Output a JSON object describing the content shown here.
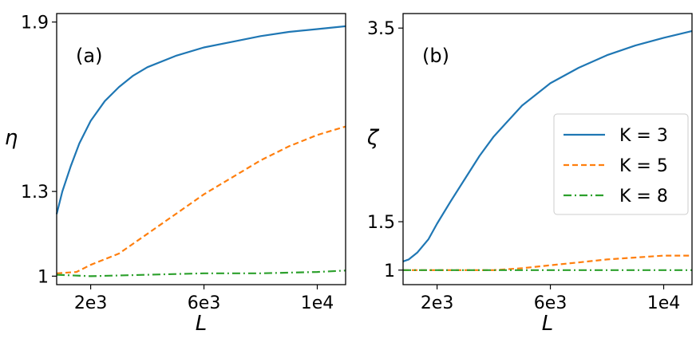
{
  "chart_data": [
    {
      "type": "line",
      "panel_label": "(a)",
      "xlabel": "L",
      "ylabel": "η",
      "xlim": [
        800,
        11000
      ],
      "ylim": [
        0.97,
        1.93
      ],
      "xticks": [
        2000,
        6000,
        10000
      ],
      "xtick_labels": [
        "2e3",
        "6e3",
        "1e4"
      ],
      "yticks": [
        1.0,
        1.3,
        1.9
      ],
      "ytick_labels": [
        "1",
        "1.3",
        "1.9"
      ],
      "series": [
        {
          "name": "K = 3",
          "color": "#1f77b4",
          "style": "solid",
          "x": [
            800,
            1000,
            1300,
            1600,
            2000,
            2500,
            3000,
            3500,
            4000,
            5000,
            6000,
            7000,
            8000,
            9000,
            10000,
            11000
          ],
          "y": [
            1.22,
            1.3,
            1.39,
            1.47,
            1.55,
            1.62,
            1.67,
            1.71,
            1.74,
            1.78,
            1.81,
            1.83,
            1.85,
            1.865,
            1.875,
            1.885
          ]
        },
        {
          "name": "K = 5",
          "color": "#ff7f0e",
          "style": "dashed",
          "x": [
            800,
            1500,
            2000,
            3000,
            4000,
            5000,
            6000,
            7000,
            8000,
            9000,
            10000,
            11000
          ],
          "y": [
            1.01,
            1.015,
            1.04,
            1.08,
            1.15,
            1.22,
            1.29,
            1.35,
            1.41,
            1.46,
            1.5,
            1.53
          ]
        },
        {
          "name": "K = 8",
          "color": "#2ca02c",
          "style": "dashdot",
          "x": [
            800,
            2000,
            4000,
            6000,
            8000,
            10000,
            11000
          ],
          "y": [
            1.005,
            1.0,
            1.005,
            1.01,
            1.01,
            1.015,
            1.02
          ]
        }
      ]
    },
    {
      "type": "line",
      "panel_label": "(b)",
      "xlabel": "L",
      "ylabel": "ζ",
      "xlim": [
        800,
        11000
      ],
      "ylim": [
        0.85,
        3.65
      ],
      "xticks": [
        2000,
        6000,
        10000
      ],
      "xtick_labels": [
        "2e3",
        "6e3",
        "1e4"
      ],
      "yticks": [
        1.0,
        1.5,
        3.5
      ],
      "ytick_labels": [
        "1",
        "1.5",
        "3.5"
      ],
      "legend": {
        "position": "center-right",
        "entries": [
          "K = 3",
          "K = 5",
          "K = 8"
        ]
      },
      "series": [
        {
          "name": "K = 3",
          "color": "#1f77b4",
          "style": "solid",
          "x": [
            800,
            1000,
            1300,
            1700,
            2000,
            2500,
            3000,
            3500,
            4000,
            5000,
            6000,
            7000,
            8000,
            9000,
            10000,
            11000
          ],
          "y": [
            1.09,
            1.11,
            1.18,
            1.32,
            1.48,
            1.72,
            1.95,
            2.18,
            2.38,
            2.7,
            2.93,
            3.09,
            3.22,
            3.32,
            3.4,
            3.47
          ]
        },
        {
          "name": "K = 5",
          "color": "#ff7f0e",
          "style": "dashed",
          "x": [
            800,
            4000,
            5000,
            6000,
            7000,
            8000,
            9000,
            10000,
            11000
          ],
          "y": [
            1.0,
            1.0,
            1.02,
            1.05,
            1.08,
            1.11,
            1.13,
            1.15,
            1.15
          ]
        },
        {
          "name": "K = 8",
          "color": "#2ca02c",
          "style": "dashdot",
          "x": [
            800,
            11000
          ],
          "y": [
            1.0,
            1.0
          ]
        }
      ]
    }
  ]
}
